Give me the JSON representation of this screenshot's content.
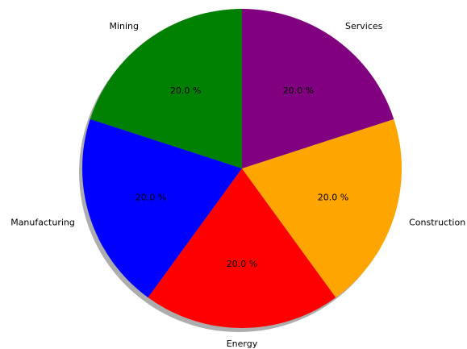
{
  "chart_data": {
    "type": "pie",
    "categories": [
      "Mining",
      "Manufacturing",
      "Energy",
      "Construction",
      "Services"
    ],
    "values": [
      20,
      20,
      20,
      20,
      20
    ],
    "value_labels": [
      "20.0 %",
      "20.0 %",
      "20.0 %",
      "20.0 %",
      "20.0 %"
    ],
    "colors": [
      "green",
      "blue",
      "red",
      "orange",
      "purple"
    ],
    "startangle": 90,
    "counterclock": true,
    "shadow": true
  }
}
